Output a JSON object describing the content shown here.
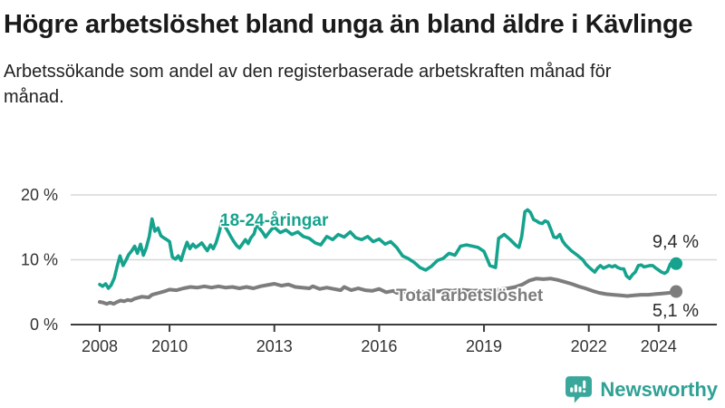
{
  "header": {
    "title": "Högre arbetslöshet bland unga än bland äldre i Kävlinge",
    "subtitle": "Arbetssökande som andel av den registerbaserade arbetskraften månad för månad."
  },
  "footer": {
    "brand": "Newsworthy"
  },
  "colors": {
    "young_line": "#15a38e",
    "total_line": "#7d7d7d",
    "grid": "#d8d8d8",
    "axis": "#3c3c3c",
    "axis_text": "#333333",
    "value_label": "#2b2b2b",
    "logo_teal": "#3aa79b",
    "logo_text": "#2fa195"
  },
  "chart_data": {
    "type": "line",
    "title": "Högre arbetslöshet bland unga än bland äldre i Kävlinge",
    "subtitle": "Arbetssökande som andel av den registerbaserade arbetskraften månad för månad.",
    "xlabel": "",
    "ylabel": "",
    "grid": "horizontal-only",
    "legend_position": "inline-labels",
    "x_axis": {
      "ticks": [
        2008,
        2010,
        2013,
        2016,
        2019,
        2022,
        2024
      ],
      "range": [
        2007.2,
        2025.1
      ]
    },
    "y_axis": {
      "ticks": [
        "0 %",
        "10 %",
        "20 %"
      ],
      "tick_values": [
        0,
        10,
        20
      ],
      "range": [
        0,
        21
      ],
      "unit": "%"
    },
    "series": [
      {
        "name": "18-24-åringar",
        "color": "#15a38e",
        "end_label": "9,4 %",
        "end_value": 9.4,
        "points": [
          [
            2008.0,
            6.2
          ],
          [
            2008.08,
            5.9
          ],
          [
            2008.17,
            6.3
          ],
          [
            2008.25,
            5.6
          ],
          [
            2008.33,
            6.1
          ],
          [
            2008.42,
            7.2
          ],
          [
            2008.5,
            9.0
          ],
          [
            2008.58,
            10.6
          ],
          [
            2008.67,
            9.1
          ],
          [
            2008.75,
            9.9
          ],
          [
            2008.83,
            10.8
          ],
          [
            2008.92,
            11.4
          ],
          [
            2009.0,
            12.1
          ],
          [
            2009.08,
            11.0
          ],
          [
            2009.17,
            12.4
          ],
          [
            2009.25,
            10.7
          ],
          [
            2009.33,
            11.8
          ],
          [
            2009.42,
            13.6
          ],
          [
            2009.5,
            16.3
          ],
          [
            2009.58,
            14.4
          ],
          [
            2009.67,
            14.9
          ],
          [
            2009.75,
            13.7
          ],
          [
            2009.83,
            13.4
          ],
          [
            2009.92,
            13.1
          ],
          [
            2010.0,
            12.8
          ],
          [
            2010.08,
            10.4
          ],
          [
            2010.17,
            10.1
          ],
          [
            2010.25,
            10.6
          ],
          [
            2010.33,
            9.9
          ],
          [
            2010.42,
            11.5
          ],
          [
            2010.5,
            12.7
          ],
          [
            2010.58,
            11.7
          ],
          [
            2010.67,
            12.4
          ],
          [
            2010.75,
            11.9
          ],
          [
            2010.83,
            12.2
          ],
          [
            2010.92,
            12.6
          ],
          [
            2011.0,
            12.0
          ],
          [
            2011.08,
            11.4
          ],
          [
            2011.17,
            12.3
          ],
          [
            2011.25,
            11.7
          ],
          [
            2011.33,
            12.6
          ],
          [
            2011.42,
            14.2
          ],
          [
            2011.5,
            16.0
          ],
          [
            2011.58,
            15.2
          ],
          [
            2011.67,
            14.4
          ],
          [
            2011.75,
            13.6
          ],
          [
            2011.83,
            12.9
          ],
          [
            2011.92,
            12.2
          ],
          [
            2012.0,
            11.8
          ],
          [
            2012.08,
            12.4
          ],
          [
            2012.17,
            13.1
          ],
          [
            2012.25,
            12.5
          ],
          [
            2012.33,
            13.4
          ],
          [
            2012.42,
            14.0
          ],
          [
            2012.5,
            15.6
          ],
          [
            2012.58,
            14.8
          ],
          [
            2012.67,
            14.2
          ],
          [
            2012.75,
            13.5
          ],
          [
            2012.83,
            14.1
          ],
          [
            2012.92,
            14.7
          ],
          [
            2013.0,
            15.0
          ],
          [
            2013.17,
            14.2
          ],
          [
            2013.33,
            14.6
          ],
          [
            2013.5,
            13.9
          ],
          [
            2013.67,
            14.3
          ],
          [
            2013.83,
            13.6
          ],
          [
            2014.0,
            13.3
          ],
          [
            2014.17,
            12.6
          ],
          [
            2014.33,
            12.3
          ],
          [
            2014.5,
            13.6
          ],
          [
            2014.67,
            13.1
          ],
          [
            2014.83,
            13.9
          ],
          [
            2015.0,
            13.5
          ],
          [
            2015.17,
            14.3
          ],
          [
            2015.33,
            13.4
          ],
          [
            2015.5,
            13.1
          ],
          [
            2015.67,
            13.6
          ],
          [
            2015.83,
            12.8
          ],
          [
            2016.0,
            13.2
          ],
          [
            2016.17,
            12.4
          ],
          [
            2016.33,
            12.8
          ],
          [
            2016.5,
            11.9
          ],
          [
            2016.67,
            10.6
          ],
          [
            2016.83,
            10.2
          ],
          [
            2017.0,
            9.6
          ],
          [
            2017.17,
            8.8
          ],
          [
            2017.33,
            8.4
          ],
          [
            2017.5,
            9.0
          ],
          [
            2017.67,
            9.9
          ],
          [
            2017.83,
            10.2
          ],
          [
            2018.0,
            11.0
          ],
          [
            2018.17,
            10.7
          ],
          [
            2018.33,
            12.1
          ],
          [
            2018.5,
            12.3
          ],
          [
            2018.67,
            12.1
          ],
          [
            2018.83,
            11.9
          ],
          [
            2019.0,
            11.3
          ],
          [
            2019.08,
            10.3
          ],
          [
            2019.17,
            9.1
          ],
          [
            2019.33,
            8.8
          ],
          [
            2019.42,
            13.3
          ],
          [
            2019.58,
            13.9
          ],
          [
            2019.75,
            13.1
          ],
          [
            2019.92,
            12.2
          ],
          [
            2020.0,
            11.9
          ],
          [
            2020.08,
            13.6
          ],
          [
            2020.17,
            17.4
          ],
          [
            2020.25,
            17.7
          ],
          [
            2020.33,
            17.3
          ],
          [
            2020.42,
            16.2
          ],
          [
            2020.5,
            16.0
          ],
          [
            2020.58,
            15.7
          ],
          [
            2020.67,
            15.6
          ],
          [
            2020.75,
            16.0
          ],
          [
            2020.83,
            15.8
          ],
          [
            2020.92,
            14.6
          ],
          [
            2021.0,
            13.5
          ],
          [
            2021.08,
            13.4
          ],
          [
            2021.17,
            13.9
          ],
          [
            2021.25,
            12.9
          ],
          [
            2021.33,
            12.3
          ],
          [
            2021.5,
            11.4
          ],
          [
            2021.67,
            10.7
          ],
          [
            2021.83,
            10.0
          ],
          [
            2021.92,
            9.3
          ],
          [
            2022.0,
            8.9
          ],
          [
            2022.08,
            8.5
          ],
          [
            2022.17,
            8.1
          ],
          [
            2022.25,
            8.7
          ],
          [
            2022.33,
            9.1
          ],
          [
            2022.42,
            8.7
          ],
          [
            2022.5,
            8.9
          ],
          [
            2022.58,
            9.1
          ],
          [
            2022.67,
            8.9
          ],
          [
            2022.75,
            9.1
          ],
          [
            2022.83,
            8.8
          ],
          [
            2022.92,
            8.6
          ],
          [
            2023.0,
            8.6
          ],
          [
            2023.08,
            7.5
          ],
          [
            2023.17,
            7.1
          ],
          [
            2023.25,
            7.7
          ],
          [
            2023.33,
            8.1
          ],
          [
            2023.42,
            9.1
          ],
          [
            2023.5,
            9.2
          ],
          [
            2023.58,
            8.9
          ],
          [
            2023.67,
            9.0
          ],
          [
            2023.75,
            9.1
          ],
          [
            2023.83,
            9.1
          ],
          [
            2023.92,
            8.7
          ],
          [
            2024.0,
            8.4
          ],
          [
            2024.08,
            8.1
          ],
          [
            2024.17,
            7.9
          ],
          [
            2024.25,
            8.2
          ],
          [
            2024.33,
            9.3
          ],
          [
            2024.42,
            9.9
          ],
          [
            2024.5,
            9.4
          ]
        ]
      },
      {
        "name": "Total arbetslöshet",
        "color": "#7d7d7d",
        "end_label": "5,1 %",
        "end_value": 5.1,
        "points": [
          [
            2008.0,
            3.5
          ],
          [
            2008.1,
            3.4
          ],
          [
            2008.2,
            3.2
          ],
          [
            2008.3,
            3.4
          ],
          [
            2008.4,
            3.2
          ],
          [
            2008.5,
            3.5
          ],
          [
            2008.6,
            3.7
          ],
          [
            2008.7,
            3.6
          ],
          [
            2008.8,
            3.8
          ],
          [
            2008.9,
            3.7
          ],
          [
            2009.0,
            4.0
          ],
          [
            2009.2,
            4.3
          ],
          [
            2009.4,
            4.2
          ],
          [
            2009.5,
            4.6
          ],
          [
            2009.7,
            4.9
          ],
          [
            2009.9,
            5.2
          ],
          [
            2010.0,
            5.4
          ],
          [
            2010.2,
            5.3
          ],
          [
            2010.4,
            5.6
          ],
          [
            2010.6,
            5.8
          ],
          [
            2010.8,
            5.7
          ],
          [
            2011.0,
            5.9
          ],
          [
            2011.2,
            5.7
          ],
          [
            2011.4,
            5.9
          ],
          [
            2011.6,
            5.7
          ],
          [
            2011.8,
            5.8
          ],
          [
            2012.0,
            5.6
          ],
          [
            2012.2,
            5.8
          ],
          [
            2012.4,
            5.6
          ],
          [
            2012.6,
            5.9
          ],
          [
            2012.8,
            6.1
          ],
          [
            2013.0,
            6.3
          ],
          [
            2013.2,
            6.0
          ],
          [
            2013.4,
            6.2
          ],
          [
            2013.6,
            5.8
          ],
          [
            2013.8,
            5.7
          ],
          [
            2014.0,
            5.6
          ],
          [
            2014.1,
            5.9
          ],
          [
            2014.3,
            5.5
          ],
          [
            2014.5,
            5.7
          ],
          [
            2014.7,
            5.5
          ],
          [
            2014.9,
            5.3
          ],
          [
            2015.0,
            5.8
          ],
          [
            2015.2,
            5.3
          ],
          [
            2015.4,
            5.6
          ],
          [
            2015.6,
            5.3
          ],
          [
            2015.8,
            5.2
          ],
          [
            2016.0,
            5.5
          ],
          [
            2016.2,
            5.0
          ],
          [
            2016.4,
            5.2
          ],
          [
            2016.5,
            4.9
          ],
          [
            2016.7,
            5.1
          ],
          [
            2016.9,
            4.9
          ],
          [
            2017.1,
            5.1
          ],
          [
            2017.3,
            5.0
          ],
          [
            2017.5,
            5.2
          ],
          [
            2017.7,
            5.1
          ],
          [
            2017.9,
            5.3
          ],
          [
            2018.1,
            5.2
          ],
          [
            2018.3,
            5.4
          ],
          [
            2018.5,
            5.3
          ],
          [
            2018.7,
            5.2
          ],
          [
            2018.9,
            5.3
          ],
          [
            2019.1,
            5.2
          ],
          [
            2019.3,
            5.3
          ],
          [
            2019.5,
            5.5
          ],
          [
            2019.7,
            5.6
          ],
          [
            2019.9,
            5.8
          ],
          [
            2020.1,
            6.2
          ],
          [
            2020.3,
            6.8
          ],
          [
            2020.5,
            7.1
          ],
          [
            2020.7,
            7.0
          ],
          [
            2020.9,
            7.1
          ],
          [
            2021.1,
            6.9
          ],
          [
            2021.3,
            6.6
          ],
          [
            2021.5,
            6.3
          ],
          [
            2021.7,
            5.9
          ],
          [
            2021.9,
            5.6
          ],
          [
            2022.1,
            5.2
          ],
          [
            2022.3,
            4.9
          ],
          [
            2022.5,
            4.7
          ],
          [
            2022.7,
            4.6
          ],
          [
            2022.9,
            4.5
          ],
          [
            2023.1,
            4.4
          ],
          [
            2023.3,
            4.5
          ],
          [
            2023.5,
            4.6
          ],
          [
            2023.7,
            4.6
          ],
          [
            2023.9,
            4.7
          ],
          [
            2024.1,
            4.8
          ],
          [
            2024.3,
            4.9
          ],
          [
            2024.5,
            5.1
          ]
        ]
      }
    ]
  }
}
